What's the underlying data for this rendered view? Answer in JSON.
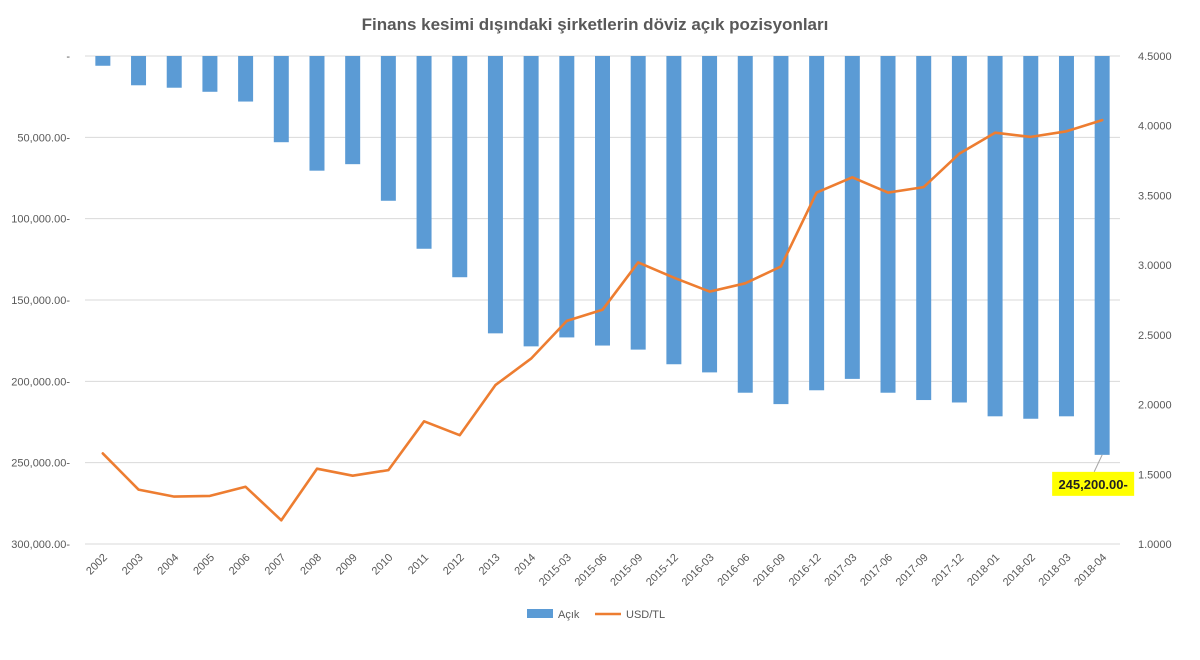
{
  "chart_data": {
    "type": "bar",
    "title": "Finans kesimi dışındaki şirketlerin döviz açık pozisyonları",
    "categories": [
      "2002",
      "2003",
      "2004",
      "2005",
      "2006",
      "2007",
      "2008",
      "2009",
      "2010",
      "2011",
      "2012",
      "2013",
      "2014",
      "2015-03",
      "2015-06",
      "2015-09",
      "2015-12",
      "2016-03",
      "2016-06",
      "2016-09",
      "2016-12",
      "2017-03",
      "2017-06",
      "2017-09",
      "2017-12",
      "2018-01",
      "2018-02",
      "2018-03",
      "2018-04"
    ],
    "series": [
      {
        "name": "Açık",
        "type": "bar",
        "axis": "left",
        "values": [
          6000,
          18000,
          19500,
          22000,
          28000,
          53000,
          70500,
          66500,
          89000,
          118500,
          136000,
          170500,
          178500,
          173000,
          178000,
          180500,
          189500,
          194500,
          207000,
          214000,
          205500,
          198500,
          207000,
          211500,
          213000,
          221500,
          223000,
          221500,
          245200
        ]
      },
      {
        "name": "USD/TL",
        "type": "line",
        "axis": "right",
        "values": [
          1.65,
          1.39,
          1.34,
          1.345,
          1.41,
          1.17,
          1.54,
          1.49,
          1.53,
          1.88,
          1.78,
          2.14,
          2.33,
          2.6,
          2.68,
          3.02,
          2.91,
          2.81,
          2.87,
          2.99,
          3.52,
          3.63,
          3.52,
          3.56,
          3.8,
          3.95,
          3.92,
          3.96,
          4.04
        ]
      }
    ],
    "left_axis": {
      "min": 0,
      "max": 300000,
      "step": 50000,
      "reversed": true,
      "tick_labels": [
        "-",
        "50,000.00-",
        "100,000.00-",
        "150,000.00-",
        "200,000.00-",
        "250,000.00-",
        "300,000.00-"
      ]
    },
    "right_axis": {
      "min": 1.0,
      "max": 4.5,
      "step": 0.5,
      "tick_labels": [
        "1.0000",
        "1.5000",
        "2.0000",
        "2.5000",
        "3.0000",
        "3.5000",
        "4.0000",
        "4.5000"
      ]
    },
    "annotation": {
      "category": "2018-04",
      "label": "245,200.00-"
    },
    "legend": {
      "position": "bottom"
    },
    "grid": true,
    "colors": {
      "bar": "#5b9bd5",
      "line": "#ed7d31",
      "grid": "#d9d9d9",
      "callout": "#ffff00"
    }
  }
}
